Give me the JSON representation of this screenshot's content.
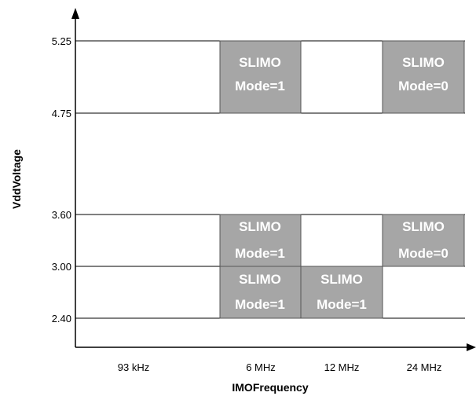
{
  "diagram": {
    "ylabel": "VddVoltage",
    "xlabel": "IMOFrequency",
    "y_ticks": [
      "5.25",
      "4.75",
      "3.60",
      "3.00",
      "2.40"
    ],
    "x_ticks": [
      "93 kHz",
      "6 MHz",
      "12 MHz",
      "24 MHz"
    ],
    "regions": [
      {
        "frequency": "6 MHz",
        "voltage_range": "4.75-5.25",
        "line1": "SLIMO",
        "line2": "Mode=1"
      },
      {
        "frequency": "24 MHz",
        "voltage_range": "4.75-5.25",
        "line1": "SLIMO",
        "line2": "Mode=0"
      },
      {
        "frequency": "6 MHz",
        "voltage_range": "3.00-3.60",
        "line1": "SLIMO",
        "line2": "Mode=1"
      },
      {
        "frequency": "24 MHz",
        "voltage_range": "3.00-3.60",
        "line1": "SLIMO",
        "line2": "Mode=0"
      },
      {
        "frequency": "6 MHz",
        "voltage_range": "2.40-3.00",
        "line1": "SLIMO",
        "line2": "Mode=1"
      },
      {
        "frequency": "12 MHz",
        "voltage_range": "2.40-3.00",
        "line1": "SLIMO",
        "line2": "Mode=1"
      }
    ],
    "colors": {
      "box_fill": "#a6a6a6",
      "box_stroke": "#555555",
      "line": "#000000"
    }
  }
}
